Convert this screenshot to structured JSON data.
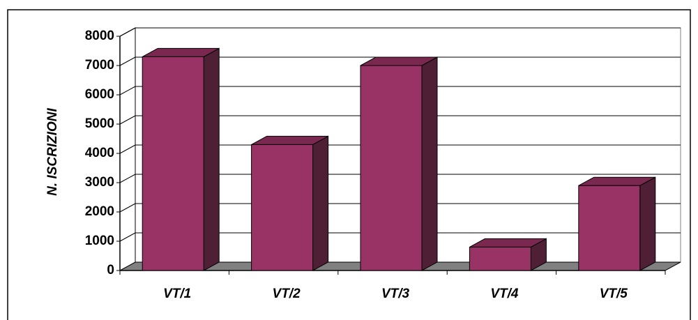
{
  "chart_data": {
    "type": "bar3d",
    "y_label": "N. ISCRIZIONI",
    "categories": [
      "VT/1",
      "VT/2",
      "VT/3",
      "VT/4",
      "VT/5"
    ],
    "values": [
      7300,
      4300,
      7000,
      800,
      2900
    ],
    "color": "#993366",
    "ylim": [
      0,
      8000
    ],
    "yticks": [
      0,
      1000,
      2000,
      3000,
      4000,
      5000,
      6000,
      7000,
      8000
    ],
    "grid": true
  }
}
